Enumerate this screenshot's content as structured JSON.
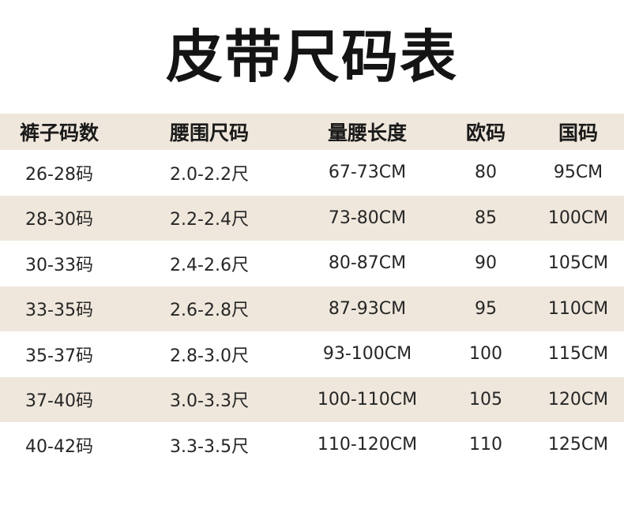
{
  "title": "皮带尺码表",
  "table": {
    "headers": [
      "裤子码数",
      "腰围尺码",
      "量腰长度",
      "欧码",
      "国码"
    ],
    "rows": [
      [
        "26-28码",
        "2.0-2.2尺",
        "67-73CM",
        "80",
        "95CM"
      ],
      [
        "28-30码",
        "2.2-2.4尺",
        "73-80CM",
        "85",
        "100CM"
      ],
      [
        "30-33码",
        "2.4-2.6尺",
        "80-87CM",
        "90",
        "105CM"
      ],
      [
        "33-35码",
        "2.6-2.8尺",
        "87-93CM",
        "95",
        "110CM"
      ],
      [
        "35-37码",
        "2.8-3.0尺",
        "93-100CM",
        "100",
        "115CM"
      ],
      [
        "37-40码",
        "3.0-3.3尺",
        "100-110CM",
        "105",
        "120CM"
      ],
      [
        "40-42码",
        "3.3-3.5尺",
        "110-120CM",
        "110",
        "125CM"
      ]
    ]
  },
  "colors": {
    "stripe": "#efe7dc",
    "text": "#1f1f1f",
    "background": "#ffffff"
  }
}
